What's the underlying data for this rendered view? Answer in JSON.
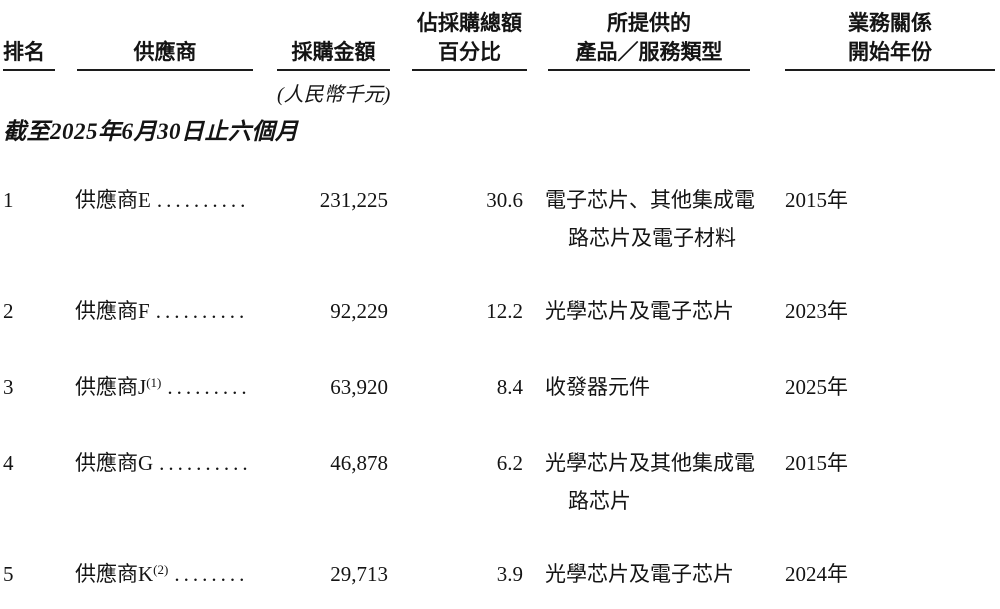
{
  "table": {
    "columns": {
      "rank": {
        "l2": "排名"
      },
      "supplier": {
        "l2": "供應商"
      },
      "amount": {
        "l2": "採購金額",
        "unit": "(人民幣千元)"
      },
      "percentage": {
        "l1": "佔採購總額",
        "l2": "百分比"
      },
      "product": {
        "l1": "所提供的",
        "l2": "產品／服務類型"
      },
      "year": {
        "l1": "業務關係",
        "l2": "開始年份"
      }
    },
    "section_title": "截至2025年6月30日止六個月",
    "rows": [
      {
        "rank": "1",
        "supplier": "供應商E",
        "footnote": "",
        "dots": "..........",
        "amount": "231,225",
        "pct": "30.6",
        "product_lines": [
          "電子芯片、其他集成電",
          "路芯片及電子材料"
        ],
        "year": "2015年"
      },
      {
        "rank": "2",
        "supplier": "供應商F",
        "footnote": "",
        "dots": "..........",
        "amount": "92,229",
        "pct": "12.2",
        "product_lines": [
          "光學芯片及電子芯片"
        ],
        "year": "2023年"
      },
      {
        "rank": "3",
        "supplier": "供應商J",
        "footnote": "(1)",
        "dots": ".........",
        "amount": "63,920",
        "pct": "8.4",
        "product_lines": [
          "收發器元件"
        ],
        "year": "2025年"
      },
      {
        "rank": "4",
        "supplier": "供應商G",
        "footnote": "",
        "dots": "..........",
        "amount": "46,878",
        "pct": "6.2",
        "product_lines": [
          "光學芯片及其他集成電",
          "路芯片"
        ],
        "year": "2015年"
      },
      {
        "rank": "5",
        "supplier": "供應商K",
        "footnote": "(2)",
        "dots": "........",
        "amount": "29,713",
        "pct": "3.9",
        "product_lines": [
          "光學芯片及電子芯片"
        ],
        "year": "2024年"
      }
    ],
    "colors": {
      "text": "#141414",
      "rule": "#1c1c1c",
      "background": "#ffffff"
    }
  }
}
